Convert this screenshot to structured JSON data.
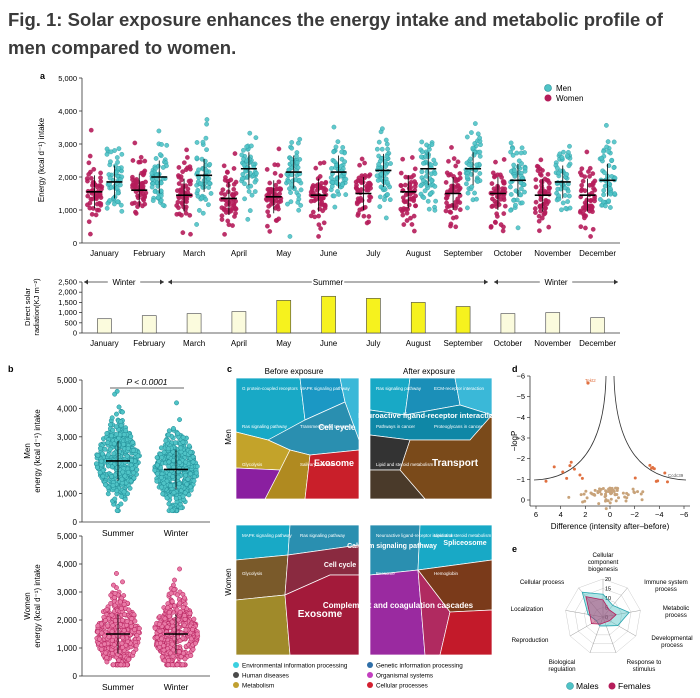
{
  "title": "Fig. 1: Solar exposure enhances the energy intake and metabolic profile of men compared to women.",
  "panels": {
    "a": "a",
    "b": "b",
    "c": "c",
    "d": "d",
    "e": "e"
  },
  "colors": {
    "men": "#4fc3c6",
    "women": "#b51c5a",
    "men_dark": "#1f8b96",
    "women_light": "#e87aa6",
    "bar_summer": "#f6f21e",
    "bar_winter": "#fbfbdd"
  },
  "chart_data": [
    {
      "id": "a-top",
      "type": "scatter",
      "ylabel": "Energy (kcal d⁻¹) intake",
      "yticks": [
        "0",
        "1,000",
        "2,000",
        "3,000",
        "4,000",
        "5,000"
      ],
      "ylim": [
        0,
        5000
      ],
      "categories": [
        "January",
        "February",
        "March",
        "April",
        "May",
        "June",
        "July",
        "August",
        "September",
        "October",
        "November",
        "December"
      ],
      "legend": [
        "Men",
        "Women"
      ],
      "series": [
        {
          "name": "Women",
          "means": [
            1550,
            1600,
            1450,
            1350,
            1400,
            1450,
            1500,
            1550,
            1500,
            1500,
            1450,
            1450
          ]
        },
        {
          "name": "Men",
          "means": [
            1850,
            2000,
            2050,
            2250,
            2150,
            2150,
            2200,
            2250,
            2250,
            1900,
            1850,
            1900
          ]
        }
      ]
    },
    {
      "id": "a-bottom",
      "type": "bar",
      "ylabel": "Direct solar radiation (KJ m⁻²)",
      "yticks": [
        "0",
        "500",
        "1,000",
        "1,500",
        "2,000",
        "2,500"
      ],
      "ylim": [
        0,
        2500
      ],
      "categories": [
        "January",
        "February",
        "March",
        "April",
        "May",
        "June",
        "July",
        "August",
        "September",
        "October",
        "November",
        "December"
      ],
      "values": [
        700,
        850,
        950,
        1050,
        1600,
        1800,
        1700,
        1500,
        1300,
        950,
        1000,
        750
      ],
      "season_labels": [
        "Winter",
        "Summer",
        "Winter"
      ],
      "summer_months": [
        4,
        5,
        6,
        7,
        8
      ]
    },
    {
      "id": "b-men",
      "type": "scatter",
      "ylabel_lines": [
        "Men",
        "energy (kcal d⁻¹) intake"
      ],
      "yticks": [
        "0",
        "1,000",
        "2,000",
        "3,000",
        "4,000",
        "5,000"
      ],
      "ylim": [
        0,
        5000
      ],
      "categories": [
        "Summer",
        "Winter"
      ],
      "means": [
        2150,
        1850
      ],
      "annotation": "P < 0.0001"
    },
    {
      "id": "b-women",
      "type": "scatter",
      "ylabel_lines": [
        "Women",
        "energy (kcal d⁻¹) intake"
      ],
      "yticks": [
        "0",
        "1,000",
        "2,000",
        "3,000",
        "4,000",
        "5,000"
      ],
      "ylim": [
        0,
        5000
      ],
      "categories": [
        "Summer",
        "Winter"
      ],
      "means": [
        1500,
        1500
      ]
    },
    {
      "id": "d",
      "type": "scatter",
      "xlabel": "Difference (intensity after–before)",
      "ylabel": "−logP",
      "xticks": [
        "6",
        "4",
        "2",
        "0",
        "−2",
        "−4",
        "−6"
      ],
      "yticks": [
        "−6",
        "−5",
        "−4",
        "−3",
        "−2",
        "−1",
        "0"
      ]
    },
    {
      "id": "e",
      "type": "radar",
      "axes": [
        "Cellular component biogenesis",
        "Immune system process",
        "Metabolic process",
        "Developmental process",
        "Response to stimulus",
        "Biological regulation",
        "Reproduction",
        "Localization",
        "Cellular process"
      ],
      "rticks": [
        "0",
        "5",
        "10",
        "15",
        "20"
      ],
      "series": [
        {
          "name": "Males",
          "values": [
            12,
            8,
            14,
            9,
            5,
            5,
            4,
            8,
            17
          ]
        },
        {
          "name": "Females",
          "values": [
            9,
            5,
            7,
            4,
            3,
            4,
            7,
            7,
            14
          ]
        }
      ]
    }
  ],
  "panel_c": {
    "col_titles": [
      "Before exposure",
      "After exposure"
    ],
    "row_titles": [
      "Men",
      "Women"
    ],
    "men_before": {
      "big": [
        "Cell cycle",
        "Exosome"
      ],
      "small": [
        "G protein-coupled receptors",
        "MAPK signaling pathway",
        "Ras signaling pathway",
        "Transmembrane transport",
        "Glycolysis",
        "Salivary secretion"
      ]
    },
    "men_after": {
      "big": [
        "Neuroactive ligand-receptor interaction",
        "Transport"
      ],
      "small": [
        "Ras signaling pathway",
        "ECM-receptor interaction",
        "Pathways in cancer",
        "Proteoglycans in cancer",
        "Lipid and steroid metabolism"
      ]
    },
    "women_before": {
      "big": [
        "Exosome",
        "Cell cycle"
      ],
      "small": [
        "MAPK signaling pathway",
        "Ras signaling pathway",
        "Glycolysis"
      ]
    },
    "women_after": {
      "big": [
        "Complement and coagulation cascades",
        "Calcium signaling pathway",
        "Spliceosome"
      ],
      "small": [
        "Neuroactive ligand-receptor interaction",
        "Lipid and steroid metabolism",
        "Exosome",
        "Hemoglobin"
      ]
    },
    "legend": [
      "Environmental information processing",
      "Human diseases",
      "Metabolism",
      "Genetic information processing",
      "Organismal systems",
      "Cellular processes"
    ],
    "legend_colors": [
      "#3bd0e0",
      "#4a4a4a",
      "#c0a030",
      "#2f6fa8",
      "#c33fc0",
      "#d42030"
    ]
  },
  "panel_e_legend": [
    "Males",
    "Females"
  ],
  "panel_d_labels": [
    "Tekt2",
    "Ccdc39"
  ]
}
